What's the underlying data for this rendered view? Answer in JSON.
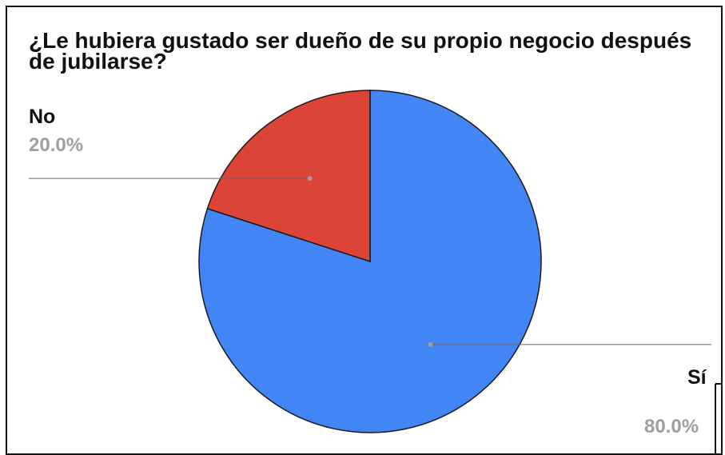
{
  "chart_data": {
    "type": "pie",
    "title": "¿Le hubiera gustado ser dueño de su propio negocio después de jubilarse?",
    "slices": [
      {
        "label": "Sí",
        "value": 80.0,
        "percent_label": "80.0%",
        "color": "#4285f4"
      },
      {
        "label": "No",
        "value": 20.0,
        "percent_label": "20.0%",
        "color": "#db4437"
      }
    ],
    "legend": "none",
    "start_angle_deg": 0,
    "direction": "clockwise"
  }
}
